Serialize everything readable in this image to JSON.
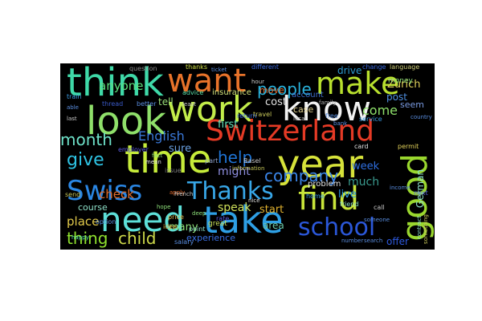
{
  "wordcloud": {
    "background": "#000000",
    "words": [
      {
        "text": "think",
        "color": "#3fd9a8"
      },
      {
        "text": "want",
        "color": "#e8732a"
      },
      {
        "text": "make",
        "color": "#b8e02e"
      },
      {
        "text": "work",
        "color": "#c2ec4a"
      },
      {
        "text": "know",
        "color": "#f2f2f2"
      },
      {
        "text": "look",
        "color": "#8fe06a"
      },
      {
        "text": "people",
        "color": "#2ab3dd"
      },
      {
        "text": "Switzerland",
        "color": "#e53a25"
      },
      {
        "text": "time",
        "color": "#c6ec3a"
      },
      {
        "text": "year",
        "color": "#d6e23a"
      },
      {
        "text": "good",
        "color": "#9ad72e"
      },
      {
        "text": "month",
        "color": "#6ee2c9"
      },
      {
        "text": "English",
        "color": "#3a78d8"
      },
      {
        "text": "give",
        "color": "#2ec3e3"
      },
      {
        "text": "help",
        "color": "#1f74d5"
      },
      {
        "text": "Swiss",
        "color": "#2a86e3"
      },
      {
        "text": "Thanks",
        "color": "#38a7e8"
      },
      {
        "text": "find",
        "color": "#c8e43a"
      },
      {
        "text": "need",
        "color": "#5de0d9"
      },
      {
        "text": "take",
        "color": "#2e9fe4"
      },
      {
        "text": "school",
        "color": "#2b57d8"
      },
      {
        "text": "company",
        "color": "#3a85e8"
      },
      {
        "text": "thing",
        "color": "#8ee02e"
      },
      {
        "text": "child",
        "color": "#cdd94a"
      },
      {
        "text": "anyone",
        "color": "#5de07c"
      },
      {
        "text": "tell",
        "color": "#9ae07a"
      },
      {
        "text": "first",
        "color": "#62e0b8"
      },
      {
        "text": "check",
        "color": "#e06b2a"
      },
      {
        "text": "might",
        "color": "#8e8ee0"
      },
      {
        "text": "sure",
        "color": "#6aa0e0"
      },
      {
        "text": "week",
        "color": "#2e6ee0"
      },
      {
        "text": "much",
        "color": "#3a9a8e"
      },
      {
        "text": "live",
        "color": "#2e9ae0"
      },
      {
        "text": "start",
        "color": "#e0b12e"
      },
      {
        "text": "speak",
        "color": "#cfe05a"
      },
      {
        "text": "area",
        "color": "#6ac8a8"
      },
      {
        "text": "experience",
        "color": "#3a6ee0"
      },
      {
        "text": "many",
        "color": "#8ee07a"
      },
      {
        "text": "place",
        "color": "#e0c84a"
      },
      {
        "text": "course",
        "color": "#8ee0c8"
      },
      {
        "text": "offer",
        "color": "#2e5ae0"
      },
      {
        "text": "problem",
        "color": "#e0e0e0"
      },
      {
        "text": "drive",
        "color": "#2e9ad0"
      },
      {
        "text": "Zurich",
        "color": "#e0d05a"
      },
      {
        "text": "post",
        "color": "#4e8ee0"
      },
      {
        "text": "come",
        "color": "#8ee06a"
      },
      {
        "text": "cost",
        "color": "#e0e0e0"
      },
      {
        "text": "move",
        "color": "#e06a2e"
      },
      {
        "text": "case",
        "color": "#e0d08e"
      },
      {
        "text": "insurance",
        "color": "#cfe07a"
      },
      {
        "text": "German",
        "color": "#8ee0c8"
      },
      {
        "text": "seem",
        "color": "#7a9ae0"
      },
      {
        "text": "account",
        "color": "#3a6ac8"
      },
      {
        "text": "money",
        "color": "#8ee07a"
      },
      {
        "text": "question",
        "color": "#8e8e8e"
      },
      {
        "text": "thanks",
        "color": "#cfe04a"
      },
      {
        "text": "different",
        "color": "#3a6ae0"
      },
      {
        "text": "change",
        "color": "#3a6ae0"
      },
      {
        "text": "language",
        "color": "#cfcf7a"
      },
      {
        "text": "train",
        "color": "#3a9ae0"
      },
      {
        "text": "thread",
        "color": "#3a5ac8"
      },
      {
        "text": "better",
        "color": "#5a8ee0"
      },
      {
        "text": "advice",
        "color": "#5ae0a8"
      },
      {
        "text": "return",
        "color": "#3a6ae0"
      },
      {
        "text": "service",
        "color": "#3a9ae0"
      },
      {
        "text": "price",
        "color": "#e0b84a"
      },
      {
        "text": "idea",
        "color": "#e0b84a"
      },
      {
        "text": "salary",
        "color": "#5a8ee0"
      },
      {
        "text": "point",
        "color": "#8ee0c8"
      },
      {
        "text": "part",
        "color": "#8ea0c8"
      },
      {
        "text": "issue",
        "color": "#7a7a7a"
      },
      {
        "text": "Basel",
        "color": "#c8c8c8"
      },
      {
        "text": "travel",
        "color": "#c8c85a"
      },
      {
        "text": "free",
        "color": "#5a8ee0"
      },
      {
        "text": "card",
        "color": "#e0e0e0"
      },
      {
        "text": "permit",
        "color": "#e0d05a"
      },
      {
        "text": "next",
        "color": "#5a6ae0"
      },
      {
        "text": "home",
        "color": "#3a9ae0"
      },
      {
        "text": "friend",
        "color": "#8ee0c8"
      },
      {
        "text": "call",
        "color": "#c8c8c8"
      },
      {
        "text": "send",
        "color": "#c8c85a"
      },
      {
        "text": "option",
        "color": "#5a8ee0"
      },
      {
        "text": "rate",
        "color": "#5a5ae0"
      },
      {
        "text": "employer",
        "color": "#5a5ae0"
      },
      {
        "text": "information",
        "color": "#c8c85a"
      },
      {
        "text": "family",
        "color": "#a8a8a8"
      },
      {
        "text": "bank",
        "color": "#5a8ee0"
      },
      {
        "text": "ticket",
        "color": "#5a8ee0"
      },
      {
        "text": "hour",
        "color": "#c8c8c8"
      },
      {
        "text": "hope",
        "color": "#8ee07a"
      },
      {
        "text": "great",
        "color": "#c8e05a"
      },
      {
        "text": "number",
        "color": "#5a8ee0"
      },
      {
        "text": "search",
        "color": "#5a8ee0"
      },
      {
        "text": "deep",
        "color": "#8ee07a"
      },
      {
        "text": "nice",
        "color": "#e0e0e0"
      },
      {
        "text": "mean",
        "color": "#e0e0e0"
      },
      {
        "text": "happy",
        "color": "#5ae0a8"
      },
      {
        "text": "local",
        "color": "#c8c8c8"
      },
      {
        "text": "apply",
        "color": "#e06a2e"
      },
      {
        "text": "fact",
        "color": "#8ee07a"
      },
      {
        "text": "country",
        "color": "#5a8ee0"
      },
      {
        "text": "income",
        "color": "#5a8ee0"
      },
      {
        "text": "French",
        "color": "#c8c8c8"
      },
      {
        "text": "something",
        "color": "#c8c85a"
      },
      {
        "text": "contract",
        "color": "#8ee0c8"
      },
      {
        "text": "someone",
        "color": "#5a8ee0"
      },
      {
        "text": "least",
        "color": "#c8c8c8"
      },
      {
        "text": "able",
        "color": "#5a8ee0"
      },
      {
        "text": "last",
        "color": "#c8c8c8"
      }
    ]
  }
}
